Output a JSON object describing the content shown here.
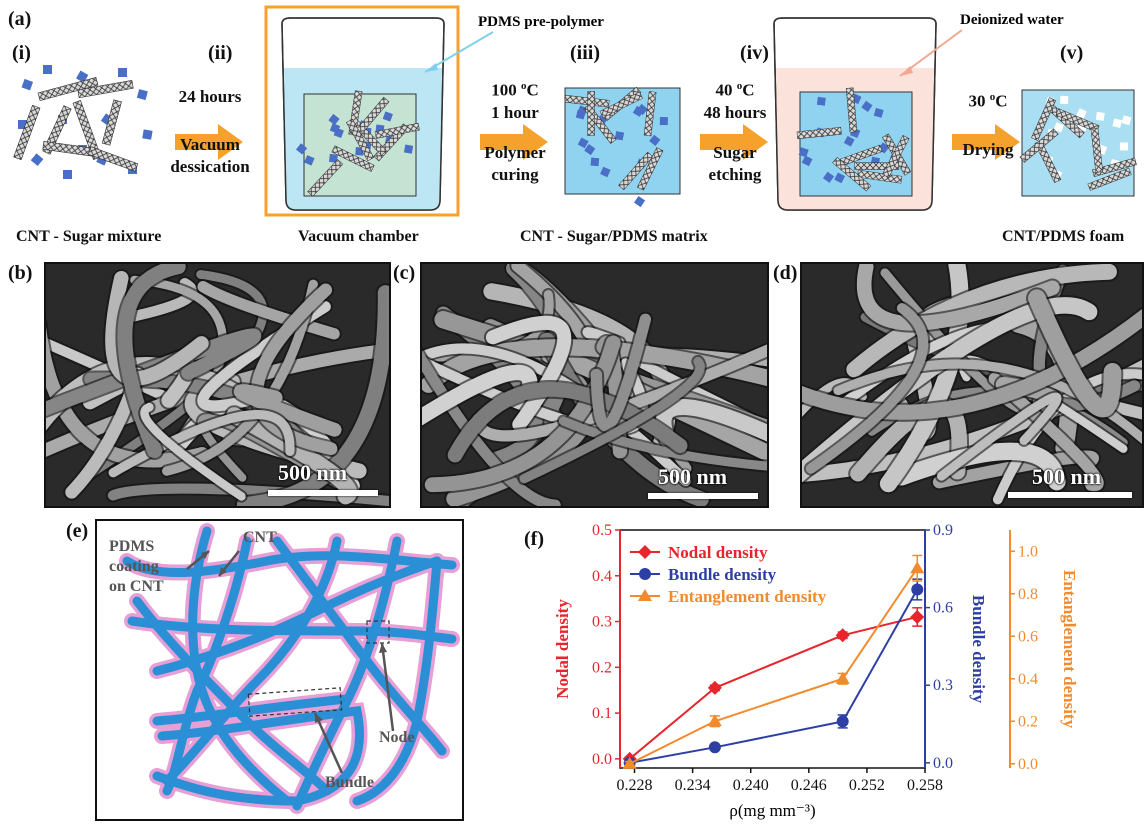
{
  "panel_a": {
    "label": "(a)",
    "stages": [
      "(i)",
      "(ii)",
      "(iii)",
      "(iv)",
      "(v)"
    ],
    "steps": [
      {
        "line1": "24 hours",
        "line2": "Vacuum",
        "line3": "dessication"
      },
      {
        "line1": "100 oC",
        "line2": "1 hour",
        "line3": "Polymer",
        "line4": "curing"
      },
      {
        "line1": "40 oC",
        "line2": "48 hours",
        "line3": "Sugar",
        "line4": "etching"
      },
      {
        "line1": "30 oC",
        "line2": "Drying"
      }
    ],
    "callouts": {
      "prepolymer": "PDMS pre-polymer",
      "water": "Deionized water"
    },
    "captions": [
      "CNT - Sugar mixture",
      "Vacuum chamber",
      "CNT - Sugar/PDMS matrix",
      "CNT/PDMS foam"
    ],
    "colors": {
      "arrow": "#f5a12c",
      "vacuum_box": "#f5a12c",
      "pdms": "#bde6f5",
      "water": "#fbe3dc",
      "sugar": "#4a6fc7"
    }
  },
  "sem": [
    {
      "label": "(b)",
      "scale": "500 nm"
    },
    {
      "label": "(c)",
      "scale": "500 nm"
    },
    {
      "label": "(d)",
      "scale": "500 nm"
    }
  ],
  "panel_e": {
    "label": "(e)",
    "labels": {
      "coating_1": "PDMS",
      "coating_2": "coating",
      "coating_3": "on CNT",
      "cnt": "CNT",
      "node": "Node",
      "bundle": "Bundle"
    },
    "colors": {
      "cnt": "#2b8fd6",
      "coating": "#e6a0d6"
    }
  },
  "panel_f": {
    "label": "(f)"
  },
  "chart_data": {
    "type": "line",
    "x": [
      0.2275,
      0.2363,
      0.2495,
      0.2572
    ],
    "xlabel": "ρ(mg mm⁻³)",
    "xticks": [
      "0.228",
      "0.234",
      "0.240",
      "0.246",
      "0.252",
      "0.258"
    ],
    "xlim": [
      0.2265,
      0.258
    ],
    "grid": false,
    "legend_position": "top-left",
    "axes": {
      "left": {
        "label": "Nodal density",
        "ylim": [
          -0.02,
          0.5
        ],
        "ticks": [
          "0.0",
          "0.1",
          "0.2",
          "0.3",
          "0.4",
          "0.5"
        ],
        "color": "#e8242c"
      },
      "right1": {
        "label": "Bundle density",
        "ylim": [
          -0.02,
          0.9
        ],
        "ticks": [
          "0.0",
          "0.3",
          "0.6",
          "0.9"
        ],
        "color": "#2d3fa4"
      },
      "right2": {
        "label": "Entanglement density",
        "ylim": [
          -0.02,
          1.1
        ],
        "ticks": [
          "0.0",
          "0.2",
          "0.4",
          "0.6",
          "0.8",
          "1.0"
        ],
        "color": "#f28a2e"
      }
    },
    "series": [
      {
        "name": "Nodal density",
        "axis": "left",
        "marker": "diamond",
        "color": "#e8242c",
        "values": [
          0.0,
          0.155,
          0.27,
          0.31
        ],
        "errors": [
          0.004,
          0.006,
          0.007,
          0.02
        ]
      },
      {
        "name": "Bundle density",
        "axis": "right1",
        "marker": "circle",
        "color": "#2d3fa4",
        "values": [
          0.0,
          0.06,
          0.16,
          0.67
        ],
        "errors": [
          0.01,
          0.01,
          0.025,
          0.04
        ]
      },
      {
        "name": "Entanglement density",
        "axis": "right2",
        "marker": "triangle",
        "color": "#f28a2e",
        "values": [
          0.0,
          0.2,
          0.4,
          0.92
        ],
        "errors": [
          0.01,
          0.025,
          0.025,
          0.06
        ]
      }
    ]
  }
}
